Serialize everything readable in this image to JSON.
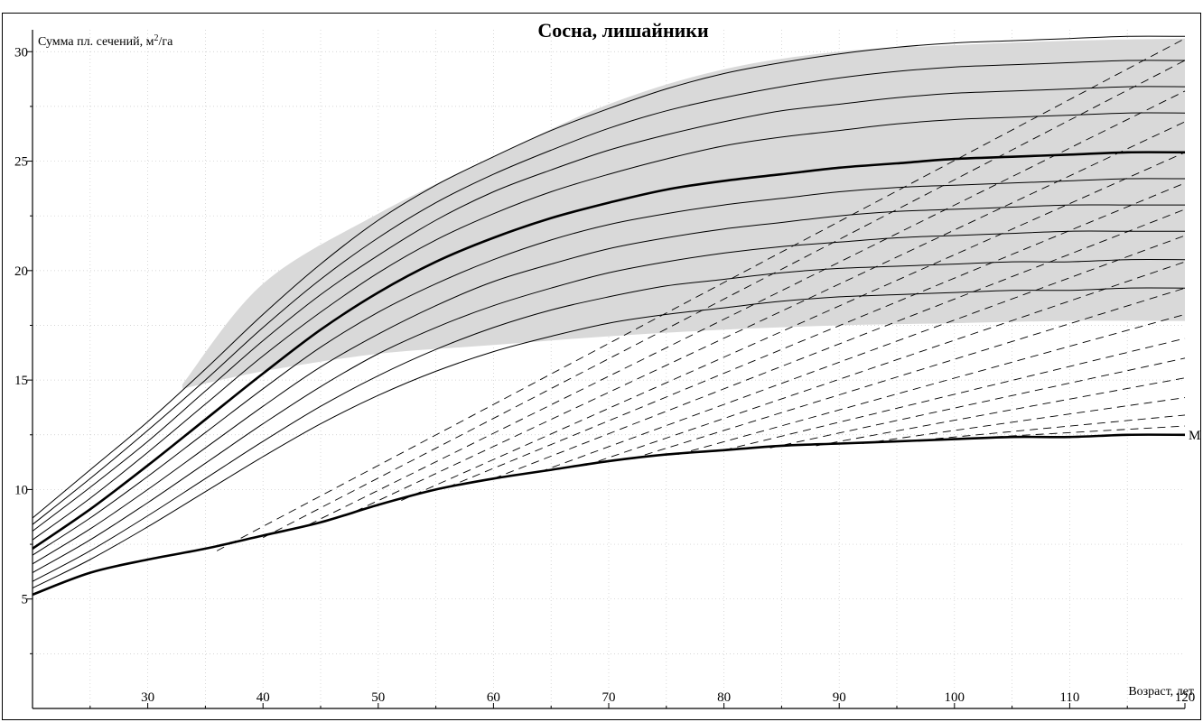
{
  "chart_data": {
    "type": "line",
    "title": "Сосна, лишайники",
    "ylabel": "Сумма пл. сечений, м²/га",
    "ylabel_main": "Сумма пл. сечений, м",
    "ylabel_sup": "2",
    "ylabel_unit": "/га",
    "xlabel": "Возраст, лет",
    "xlim": [
      20,
      120
    ],
    "ylim": [
      0,
      31
    ],
    "x_ticks": [
      30,
      40,
      50,
      60,
      70,
      80,
      90,
      100,
      110,
      120
    ],
    "y_ticks": [
      5,
      10,
      15,
      20,
      25,
      30
    ],
    "grid": true,
    "band": {
      "description": "shaded zone",
      "x": [
        33,
        40,
        50,
        60,
        70,
        80,
        90,
        100,
        110,
        120
      ],
      "upper": [
        14.8,
        19.4,
        22.6,
        25.2,
        27.6,
        29.2,
        30.0,
        30.3,
        30.5,
        30.6
      ],
      "lower": [
        14.6,
        15.4,
        16.2,
        16.6,
        17.0,
        17.3,
        17.5,
        17.6,
        17.7,
        17.7
      ]
    },
    "x": [
      20,
      25,
      30,
      35,
      40,
      45,
      50,
      55,
      60,
      65,
      70,
      75,
      80,
      85,
      90,
      95,
      100,
      105,
      110,
      115,
      120
    ],
    "series": [
      {
        "values": [
          8.7,
          10.9,
          13.1,
          15.5,
          18.0,
          20.3,
          22.3,
          23.9,
          25.2,
          26.4,
          27.4,
          28.3,
          29.0,
          29.5,
          29.9,
          30.2,
          30.4,
          30.5,
          30.6,
          30.7,
          30.7
        ],
        "bold": false
      },
      {
        "values": [
          8.4,
          10.5,
          12.7,
          15.0,
          17.4,
          19.6,
          21.5,
          23.1,
          24.4,
          25.5,
          26.5,
          27.3,
          27.9,
          28.4,
          28.8,
          29.1,
          29.3,
          29.4,
          29.5,
          29.6,
          29.6
        ],
        "bold": false
      },
      {
        "values": [
          8.1,
          10.1,
          12.2,
          14.5,
          16.8,
          18.9,
          20.7,
          22.3,
          23.6,
          24.6,
          25.5,
          26.2,
          26.8,
          27.3,
          27.6,
          27.9,
          28.1,
          28.2,
          28.3,
          28.4,
          28.4
        ],
        "bold": false
      },
      {
        "values": [
          7.7,
          9.6,
          11.7,
          13.9,
          16.1,
          18.1,
          19.9,
          21.4,
          22.6,
          23.6,
          24.4,
          25.1,
          25.7,
          26.1,
          26.4,
          26.7,
          26.9,
          27.0,
          27.1,
          27.2,
          27.2
        ],
        "bold": false
      },
      {
        "values": [
          7.3,
          9.1,
          11.1,
          13.2,
          15.3,
          17.3,
          19.0,
          20.4,
          21.5,
          22.4,
          23.1,
          23.7,
          24.1,
          24.4,
          24.7,
          24.9,
          25.1,
          25.2,
          25.3,
          25.4,
          25.4
        ],
        "bold": true
      },
      {
        "values": [
          7.0,
          8.7,
          10.6,
          12.6,
          14.6,
          16.5,
          18.1,
          19.4,
          20.5,
          21.4,
          22.1,
          22.6,
          23.0,
          23.3,
          23.6,
          23.8,
          23.9,
          24.0,
          24.1,
          24.2,
          24.2
        ],
        "bold": false
      },
      {
        "values": [
          6.6,
          8.2,
          10.0,
          11.9,
          13.8,
          15.6,
          17.1,
          18.4,
          19.5,
          20.3,
          21.0,
          21.5,
          21.9,
          22.2,
          22.5,
          22.7,
          22.8,
          22.9,
          23.0,
          23.0,
          23.0
        ],
        "bold": false
      },
      {
        "values": [
          6.2,
          7.7,
          9.4,
          11.2,
          13.0,
          14.7,
          16.2,
          17.4,
          18.4,
          19.2,
          19.9,
          20.4,
          20.8,
          21.1,
          21.3,
          21.5,
          21.6,
          21.7,
          21.8,
          21.8,
          21.8
        ],
        "bold": false
      },
      {
        "values": [
          5.8,
          7.2,
          8.8,
          10.5,
          12.2,
          13.8,
          15.2,
          16.4,
          17.4,
          18.2,
          18.8,
          19.3,
          19.6,
          19.9,
          20.1,
          20.2,
          20.3,
          20.4,
          20.4,
          20.5,
          20.5
        ],
        "bold": false
      },
      {
        "values": [
          5.5,
          6.8,
          8.3,
          9.9,
          11.5,
          13.0,
          14.3,
          15.4,
          16.3,
          17.0,
          17.6,
          18.0,
          18.3,
          18.6,
          18.8,
          18.9,
          19.0,
          19.1,
          19.1,
          19.2,
          19.2
        ],
        "bold": false
      },
      {
        "values": [
          5.2,
          6.2,
          6.8,
          7.3,
          7.9,
          8.5,
          9.3,
          10.0,
          10.5,
          10.9,
          11.3,
          11.6,
          11.8,
          12.0,
          12.1,
          12.2,
          12.3,
          12.4,
          12.4,
          12.5,
          12.5
        ],
        "bold": true,
        "name": "М"
      }
    ],
    "dashed_lines": [
      {
        "x": [
          36,
          120
        ],
        "y": [
          7.2,
          30.6
        ]
      },
      {
        "x": [
          40,
          120
        ],
        "y": [
          7.8,
          29.6
        ]
      },
      {
        "x": [
          44,
          120
        ],
        "y": [
          8.4,
          28.2
        ]
      },
      {
        "x": [
          48,
          120
        ],
        "y": [
          9.0,
          26.8
        ]
      },
      {
        "x": [
          52,
          120
        ],
        "y": [
          9.5,
          25.4
        ]
      },
      {
        "x": [
          56,
          120
        ],
        "y": [
          10.1,
          24.0
        ]
      },
      {
        "x": [
          60,
          120
        ],
        "y": [
          10.5,
          22.8
        ]
      },
      {
        "x": [
          64,
          120
        ],
        "y": [
          10.8,
          21.6
        ]
      },
      {
        "x": [
          68,
          120
        ],
        "y": [
          11.1,
          20.4
        ]
      },
      {
        "x": [
          72,
          120
        ],
        "y": [
          11.4,
          19.2
        ]
      },
      {
        "x": [
          76,
          120
        ],
        "y": [
          11.6,
          18.0
        ]
      },
      {
        "x": [
          80,
          120
        ],
        "y": [
          11.8,
          16.9
        ]
      },
      {
        "x": [
          84,
          120
        ],
        "y": [
          11.9,
          16.0
        ]
      },
      {
        "x": [
          88,
          120
        ],
        "y": [
          12.0,
          15.1
        ]
      },
      {
        "x": [
          92,
          120
        ],
        "y": [
          12.1,
          14.2
        ]
      },
      {
        "x": [
          96,
          120
        ],
        "y": [
          12.2,
          13.4
        ]
      },
      {
        "x": [
          100,
          120
        ],
        "y": [
          12.3,
          12.9
        ]
      }
    ]
  }
}
